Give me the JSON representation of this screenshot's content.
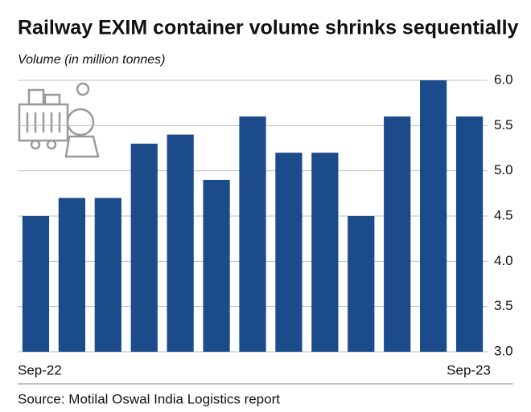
{
  "chart_data": {
    "type": "bar",
    "title": "Railway EXIM container volume shrinks sequentially",
    "y_label": "Volume (in million tonnes)",
    "source": "Source: Motilal Oswal India Logistics report",
    "categories": [
      "Sep-22",
      null,
      null,
      null,
      null,
      null,
      null,
      null,
      null,
      null,
      null,
      null,
      "Sep-23"
    ],
    "values": [
      4.5,
      4.7,
      4.7,
      5.3,
      5.4,
      4.9,
      5.6,
      5.2,
      5.2,
      4.5,
      5.6,
      6.0,
      5.6
    ],
    "color": "#1c4b8b",
    "ylim": [
      3,
      6
    ],
    "yticks": [
      {
        "value": 3,
        "label": "3.0"
      },
      3.5,
      {
        "value": 4,
        "label": "4.0"
      },
      4.5,
      {
        "value": 5,
        "label": "5.0"
      },
      5.5,
      {
        "value": 6,
        "label": "6.0"
      }
    ],
    "grid": true
  }
}
